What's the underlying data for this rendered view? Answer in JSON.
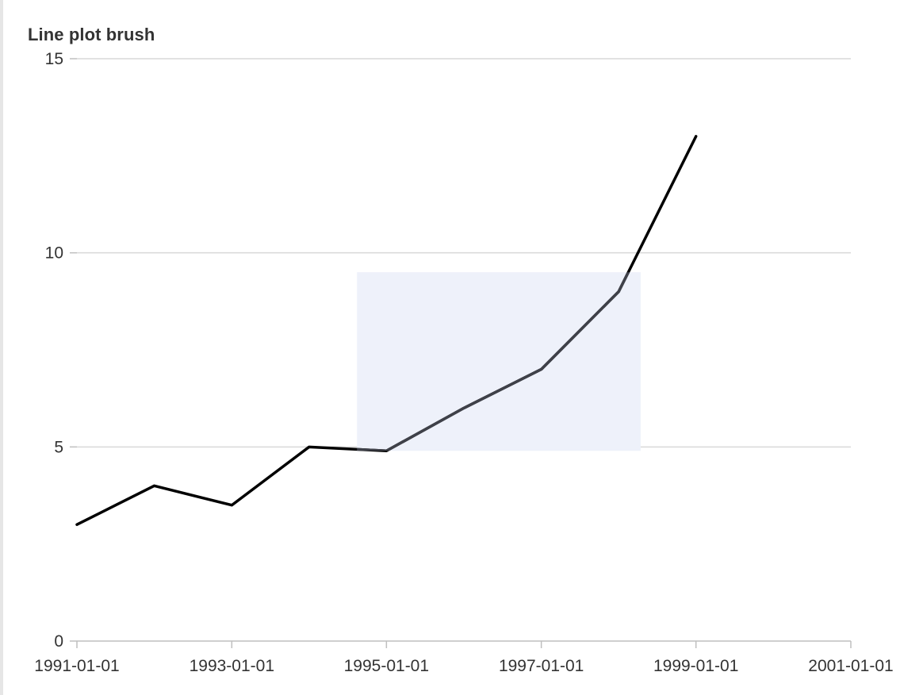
{
  "chart_data": {
    "type": "line",
    "title": "Line plot brush",
    "xlabel": "",
    "ylabel": "",
    "x": [
      "1991-01-01",
      "1992-01-01",
      "1993-01-01",
      "1994-01-01",
      "1995-01-01",
      "1996-01-01",
      "1997-01-01",
      "1998-01-01",
      "1999-01-01"
    ],
    "series": [
      {
        "values": [
          3,
          4,
          3.5,
          5,
          4.9,
          6,
          7,
          9,
          13
        ]
      }
    ],
    "xlim": [
      "1991-01-01",
      "2001-01-01"
    ],
    "ylim": [
      0,
      15
    ],
    "x_ticks": [
      "1991-01-01",
      "1993-01-01",
      "1995-01-01",
      "1997-01-01",
      "1999-01-01",
      "2001-01-01"
    ],
    "y_ticks": [
      0,
      5,
      10,
      15
    ],
    "grid": "horizontal",
    "brush": {
      "x_start": "1994-08-15",
      "x_end": "1998-04-15",
      "y_start": 4.9,
      "y_end": 9.5
    },
    "colors": {
      "line": "#000000",
      "line_in_brush": "#3f4149",
      "brush_fill": "#eef1fa",
      "grid": "#d9d9d9",
      "axis": "#bfbfbf"
    }
  }
}
